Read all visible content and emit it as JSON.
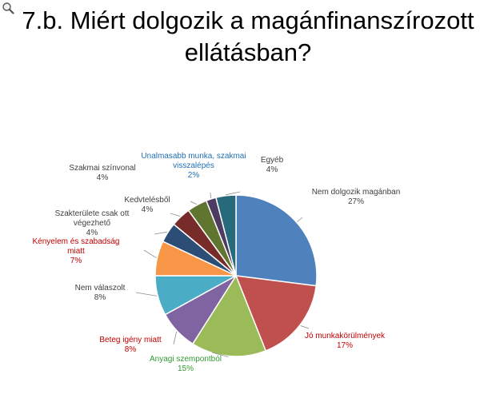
{
  "title": [
    "7.b. Miért dolgozik a magánfinanszírozott",
    "ellátásban?"
  ],
  "chart_data": {
    "type": "pie",
    "title": "7.b. Miért dolgozik a magánfinanszírozott ellátásban?",
    "slices": [
      {
        "label": [
          "Nem dolgozik magánban"
        ],
        "pct_label": "27%",
        "value": 27,
        "color": "#4F81BD",
        "label_color": "#404040"
      },
      {
        "label": [
          "Jó munkakörülmények"
        ],
        "pct_label": "17%",
        "value": 17,
        "color": "#C0504D",
        "label_color": "#C00000"
      },
      {
        "label": [
          "Anyagi szempontból"
        ],
        "pct_label": "15%",
        "value": 15,
        "color": "#9BBB59",
        "label_color": "#339933"
      },
      {
        "label": [
          "Beteg igény miatt"
        ],
        "pct_label": "8%",
        "value": 8,
        "color": "#8064A2",
        "label_color": "#C00000"
      },
      {
        "label": [
          "Nem válaszolt"
        ],
        "pct_label": "8%",
        "value": 8,
        "color": "#4BACC6",
        "label_color": "#404040"
      },
      {
        "label": [
          "Kényelem és szabadság",
          "miatt"
        ],
        "pct_label": "7%",
        "value": 7,
        "color": "#F79646",
        "label_color": "#C00000"
      },
      {
        "label": [
          "Szakterülete csak ott",
          "végezhető"
        ],
        "pct_label": "4%",
        "value": 4,
        "color": "#2C4D75",
        "label_color": "#404040"
      },
      {
        "label": [
          "Kedvtelésből"
        ],
        "pct_label": "4%",
        "value": 4,
        "color": "#772C2A",
        "label_color": "#404040"
      },
      {
        "label": [
          "Szakmai színvonal"
        ],
        "pct_label": "4%",
        "value": 4,
        "color": "#5F7530",
        "label_color": "#404040"
      },
      {
        "label": [
          "Unalmasabb munka, szakmai",
          "visszalépés"
        ],
        "pct_label": "2%",
        "value": 2,
        "color": "#4D3B62",
        "label_color": "#1F6FB5"
      },
      {
        "label": [
          "Egyéb"
        ],
        "pct_label": "4%",
        "value": 4,
        "color": "#276A7C",
        "label_color": "#404040"
      }
    ]
  }
}
